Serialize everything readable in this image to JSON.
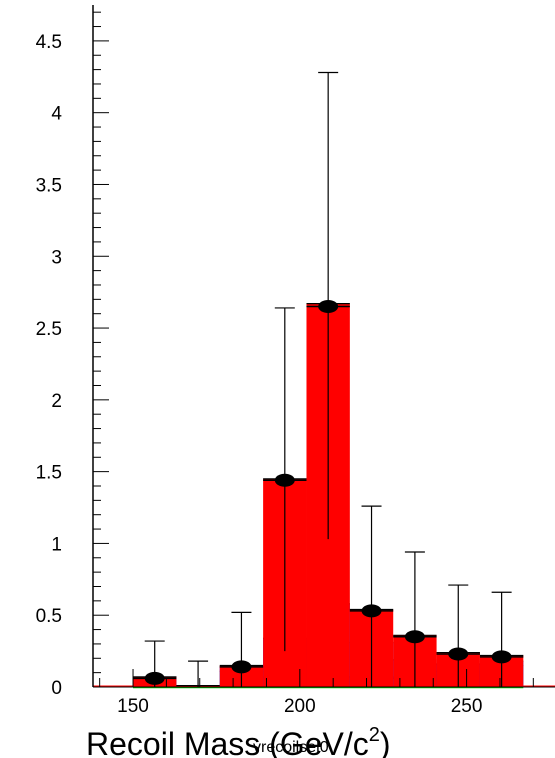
{
  "chart_data": {
    "type": "bar",
    "stacked": true,
    "xlabel_main": "Recoil Mass (GeV/c",
    "xlabel_sup": "2",
    "xlabel_tail": ")",
    "overlay_label": "vrecoilsel0",
    "xlim": [
      138,
      278
    ],
    "ylim": [
      0,
      4.75
    ],
    "x_ticks": [
      150,
      200,
      250
    ],
    "x_tick_labels": [
      "150",
      "200",
      "250"
    ],
    "y_ticks": [
      0,
      0.5,
      1,
      1.5,
      2,
      2.5,
      3,
      3.5,
      4,
      4.5
    ],
    "y_tick_labels": [
      "0",
      "0.5",
      "1",
      "1.5",
      "2",
      "2.5",
      "3",
      "3.5",
      "4",
      "4.5"
    ],
    "bin_edges": [
      150,
      163,
      176,
      189,
      202,
      215,
      228,
      241,
      254,
      267
    ],
    "series": [
      {
        "color": "#00ffff",
        "values": [
          0.06,
          0.01,
          0.11,
          0.07,
          0.07,
          0.07,
          0.06,
          0.11,
          0.15
        ]
      },
      {
        "color": "#0000ff",
        "values": [
          0.07,
          0.01,
          0.14,
          0.34,
          0.58,
          0.31,
          0.19,
          0.16,
          0.18
        ]
      },
      {
        "color": "#ff0000",
        "values": [
          0.07,
          0.01,
          0.15,
          1.45,
          2.67,
          0.54,
          0.36,
          0.24,
          0.22
        ]
      }
    ],
    "data_points": {
      "x": [
        156.5,
        182.5,
        195.5,
        208.5,
        221.5,
        234.5,
        247.5,
        260.5
      ],
      "y": [
        0.06,
        0.14,
        1.44,
        2.65,
        0.53,
        0.35,
        0.23,
        0.21
      ],
      "err_lo": [
        0.06,
        0.14,
        1.19,
        1.62,
        0.53,
        0.35,
        0.23,
        0.21
      ],
      "err_hi": [
        0.26,
        0.38,
        1.2,
        1.63,
        0.73,
        0.59,
        0.48,
        0.45
      ]
    },
    "empty_marker_x": [
      169.5
    ],
    "empty_marker_err_hi": 0.18,
    "baseline_color": "#00cc00",
    "grid": false
  }
}
